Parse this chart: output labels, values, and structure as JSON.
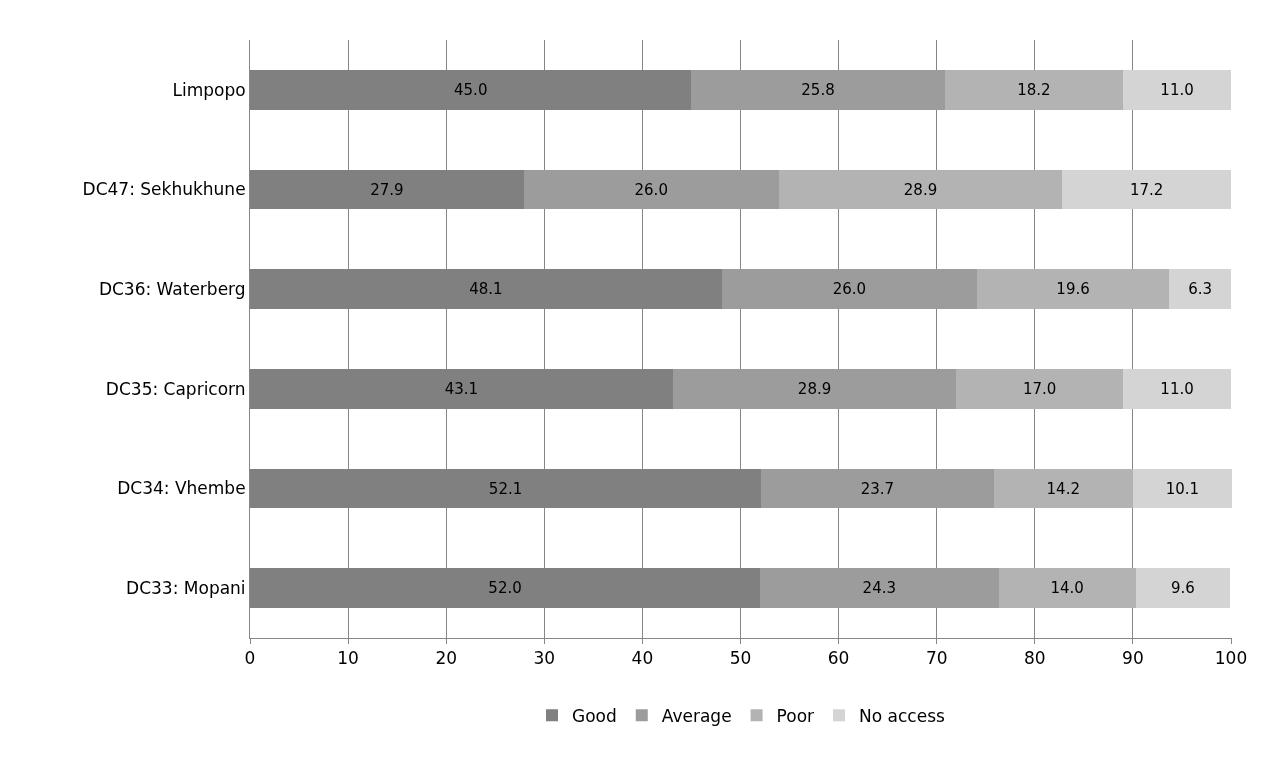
{
  "chart_data": {
    "type": "bar",
    "orientation": "horizontal",
    "stacked": true,
    "categories": [
      "Limpopo",
      "DC47: Sekhukhune",
      "DC36: Waterberg",
      "DC35: Capricorn",
      "DC34: Vhembe",
      "DC33: Mopani"
    ],
    "series": [
      {
        "name": "Good",
        "color": "#808080",
        "values": [
          45.0,
          27.9,
          48.1,
          43.1,
          52.1,
          52.0
        ],
        "value_labels": [
          "45.0",
          "27.9",
          "48.1",
          "43.1",
          "52.1",
          "52.0"
        ]
      },
      {
        "name": "Average",
        "color": "#9c9c9c",
        "values": [
          25.8,
          26.0,
          26.0,
          28.9,
          23.7,
          24.3
        ],
        "value_labels": [
          "25.8",
          "26.0",
          "26.0",
          "28.9",
          "23.7",
          "24.3"
        ]
      },
      {
        "name": "Poor",
        "color": "#b3b3b3",
        "values": [
          18.2,
          28.9,
          19.6,
          17.0,
          14.2,
          14.0
        ],
        "value_labels": [
          "18.2",
          "28.9",
          "19.6",
          "17.0",
          "14.2",
          "14.0"
        ]
      },
      {
        "name": "No access",
        "color": "#d4d4d4",
        "values": [
          11.0,
          17.2,
          6.3,
          11.0,
          10.1,
          9.6
        ],
        "value_labels": [
          "11.0",
          "17.2",
          "6.3",
          "11.0",
          "10.1",
          "9.6"
        ]
      }
    ],
    "xlim": [
      0,
      100.1
    ],
    "xticks": [
      0,
      10,
      20,
      30,
      40,
      50,
      60,
      70,
      80,
      90,
      100
    ],
    "grid": "x",
    "legend": "bottom"
  }
}
